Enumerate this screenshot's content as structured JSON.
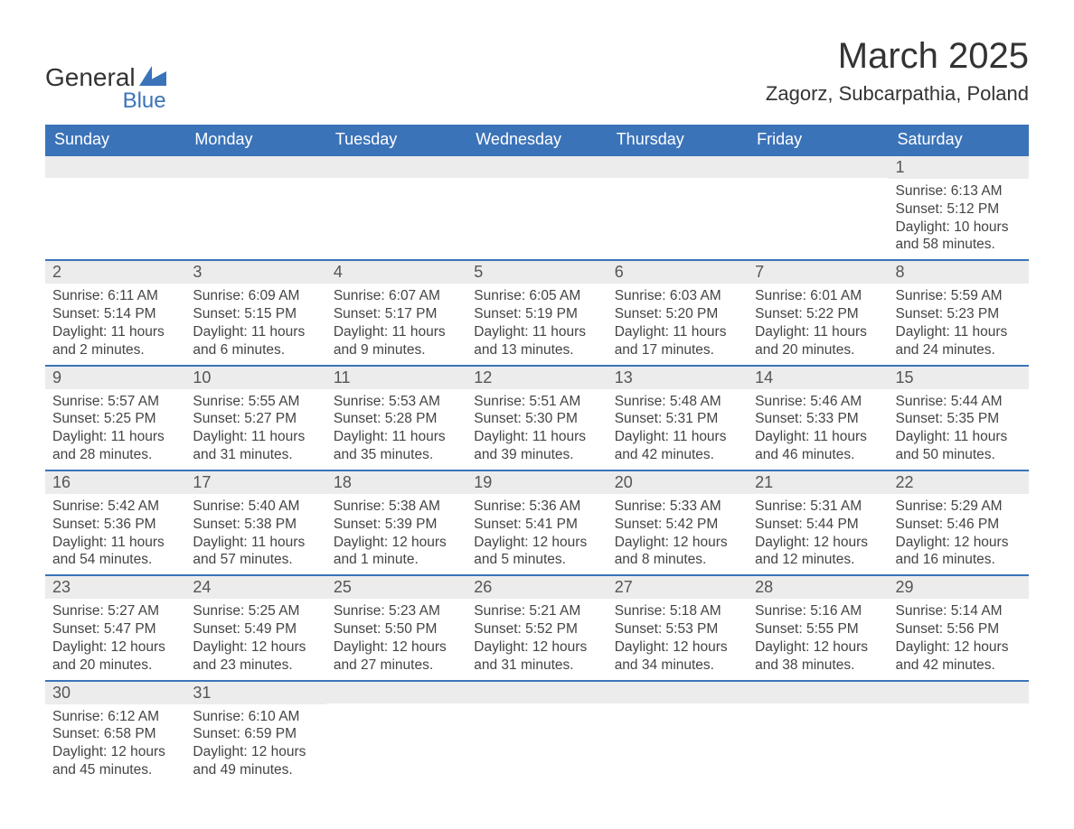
{
  "logo": {
    "word1": "General",
    "word2": "Blue",
    "text_color": "#333333",
    "accent_color": "#3b73b9"
  },
  "title": "March 2025",
  "location": "Zagorz, Subcarpathia, Poland",
  "colors": {
    "header_bg": "#3b73b9",
    "header_text": "#ffffff",
    "daynum_bg": "#ececec",
    "daynum_text": "#555555",
    "body_text": "#444444",
    "rule": "#3b73b9",
    "page_bg": "#ffffff"
  },
  "typography": {
    "title_fontsize": 40,
    "location_fontsize": 22,
    "header_fontsize": 18,
    "daynum_fontsize": 18,
    "body_fontsize": 15.5
  },
  "day_headers": [
    "Sunday",
    "Monday",
    "Tuesday",
    "Wednesday",
    "Thursday",
    "Friday",
    "Saturday"
  ],
  "weeks": [
    [
      {
        "n": "",
        "sunrise": "",
        "sunset": "",
        "daylight": ""
      },
      {
        "n": "",
        "sunrise": "",
        "sunset": "",
        "daylight": ""
      },
      {
        "n": "",
        "sunrise": "",
        "sunset": "",
        "daylight": ""
      },
      {
        "n": "",
        "sunrise": "",
        "sunset": "",
        "daylight": ""
      },
      {
        "n": "",
        "sunrise": "",
        "sunset": "",
        "daylight": ""
      },
      {
        "n": "",
        "sunrise": "",
        "sunset": "",
        "daylight": ""
      },
      {
        "n": "1",
        "sunrise": "Sunrise: 6:13 AM",
        "sunset": "Sunset: 5:12 PM",
        "daylight": "Daylight: 10 hours and 58 minutes."
      }
    ],
    [
      {
        "n": "2",
        "sunrise": "Sunrise: 6:11 AM",
        "sunset": "Sunset: 5:14 PM",
        "daylight": "Daylight: 11 hours and 2 minutes."
      },
      {
        "n": "3",
        "sunrise": "Sunrise: 6:09 AM",
        "sunset": "Sunset: 5:15 PM",
        "daylight": "Daylight: 11 hours and 6 minutes."
      },
      {
        "n": "4",
        "sunrise": "Sunrise: 6:07 AM",
        "sunset": "Sunset: 5:17 PM",
        "daylight": "Daylight: 11 hours and 9 minutes."
      },
      {
        "n": "5",
        "sunrise": "Sunrise: 6:05 AM",
        "sunset": "Sunset: 5:19 PM",
        "daylight": "Daylight: 11 hours and 13 minutes."
      },
      {
        "n": "6",
        "sunrise": "Sunrise: 6:03 AM",
        "sunset": "Sunset: 5:20 PM",
        "daylight": "Daylight: 11 hours and 17 minutes."
      },
      {
        "n": "7",
        "sunrise": "Sunrise: 6:01 AM",
        "sunset": "Sunset: 5:22 PM",
        "daylight": "Daylight: 11 hours and 20 minutes."
      },
      {
        "n": "8",
        "sunrise": "Sunrise: 5:59 AM",
        "sunset": "Sunset: 5:23 PM",
        "daylight": "Daylight: 11 hours and 24 minutes."
      }
    ],
    [
      {
        "n": "9",
        "sunrise": "Sunrise: 5:57 AM",
        "sunset": "Sunset: 5:25 PM",
        "daylight": "Daylight: 11 hours and 28 minutes."
      },
      {
        "n": "10",
        "sunrise": "Sunrise: 5:55 AM",
        "sunset": "Sunset: 5:27 PM",
        "daylight": "Daylight: 11 hours and 31 minutes."
      },
      {
        "n": "11",
        "sunrise": "Sunrise: 5:53 AM",
        "sunset": "Sunset: 5:28 PM",
        "daylight": "Daylight: 11 hours and 35 minutes."
      },
      {
        "n": "12",
        "sunrise": "Sunrise: 5:51 AM",
        "sunset": "Sunset: 5:30 PM",
        "daylight": "Daylight: 11 hours and 39 minutes."
      },
      {
        "n": "13",
        "sunrise": "Sunrise: 5:48 AM",
        "sunset": "Sunset: 5:31 PM",
        "daylight": "Daylight: 11 hours and 42 minutes."
      },
      {
        "n": "14",
        "sunrise": "Sunrise: 5:46 AM",
        "sunset": "Sunset: 5:33 PM",
        "daylight": "Daylight: 11 hours and 46 minutes."
      },
      {
        "n": "15",
        "sunrise": "Sunrise: 5:44 AM",
        "sunset": "Sunset: 5:35 PM",
        "daylight": "Daylight: 11 hours and 50 minutes."
      }
    ],
    [
      {
        "n": "16",
        "sunrise": "Sunrise: 5:42 AM",
        "sunset": "Sunset: 5:36 PM",
        "daylight": "Daylight: 11 hours and 54 minutes."
      },
      {
        "n": "17",
        "sunrise": "Sunrise: 5:40 AM",
        "sunset": "Sunset: 5:38 PM",
        "daylight": "Daylight: 11 hours and 57 minutes."
      },
      {
        "n": "18",
        "sunrise": "Sunrise: 5:38 AM",
        "sunset": "Sunset: 5:39 PM",
        "daylight": "Daylight: 12 hours and 1 minute."
      },
      {
        "n": "19",
        "sunrise": "Sunrise: 5:36 AM",
        "sunset": "Sunset: 5:41 PM",
        "daylight": "Daylight: 12 hours and 5 minutes."
      },
      {
        "n": "20",
        "sunrise": "Sunrise: 5:33 AM",
        "sunset": "Sunset: 5:42 PM",
        "daylight": "Daylight: 12 hours and 8 minutes."
      },
      {
        "n": "21",
        "sunrise": "Sunrise: 5:31 AM",
        "sunset": "Sunset: 5:44 PM",
        "daylight": "Daylight: 12 hours and 12 minutes."
      },
      {
        "n": "22",
        "sunrise": "Sunrise: 5:29 AM",
        "sunset": "Sunset: 5:46 PM",
        "daylight": "Daylight: 12 hours and 16 minutes."
      }
    ],
    [
      {
        "n": "23",
        "sunrise": "Sunrise: 5:27 AM",
        "sunset": "Sunset: 5:47 PM",
        "daylight": "Daylight: 12 hours and 20 minutes."
      },
      {
        "n": "24",
        "sunrise": "Sunrise: 5:25 AM",
        "sunset": "Sunset: 5:49 PM",
        "daylight": "Daylight: 12 hours and 23 minutes."
      },
      {
        "n": "25",
        "sunrise": "Sunrise: 5:23 AM",
        "sunset": "Sunset: 5:50 PM",
        "daylight": "Daylight: 12 hours and 27 minutes."
      },
      {
        "n": "26",
        "sunrise": "Sunrise: 5:21 AM",
        "sunset": "Sunset: 5:52 PM",
        "daylight": "Daylight: 12 hours and 31 minutes."
      },
      {
        "n": "27",
        "sunrise": "Sunrise: 5:18 AM",
        "sunset": "Sunset: 5:53 PM",
        "daylight": "Daylight: 12 hours and 34 minutes."
      },
      {
        "n": "28",
        "sunrise": "Sunrise: 5:16 AM",
        "sunset": "Sunset: 5:55 PM",
        "daylight": "Daylight: 12 hours and 38 minutes."
      },
      {
        "n": "29",
        "sunrise": "Sunrise: 5:14 AM",
        "sunset": "Sunset: 5:56 PM",
        "daylight": "Daylight: 12 hours and 42 minutes."
      }
    ],
    [
      {
        "n": "30",
        "sunrise": "Sunrise: 6:12 AM",
        "sunset": "Sunset: 6:58 PM",
        "daylight": "Daylight: 12 hours and 45 minutes."
      },
      {
        "n": "31",
        "sunrise": "Sunrise: 6:10 AM",
        "sunset": "Sunset: 6:59 PM",
        "daylight": "Daylight: 12 hours and 49 minutes."
      },
      {
        "n": "",
        "sunrise": "",
        "sunset": "",
        "daylight": ""
      },
      {
        "n": "",
        "sunrise": "",
        "sunset": "",
        "daylight": ""
      },
      {
        "n": "",
        "sunrise": "",
        "sunset": "",
        "daylight": ""
      },
      {
        "n": "",
        "sunrise": "",
        "sunset": "",
        "daylight": ""
      },
      {
        "n": "",
        "sunrise": "",
        "sunset": "",
        "daylight": ""
      }
    ]
  ]
}
